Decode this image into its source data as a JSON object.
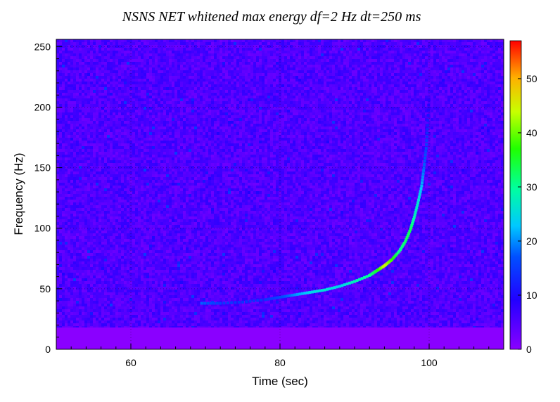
{
  "chart_data": {
    "type": "heatmap",
    "title": "NSNS NET whitened max energy df=2 Hz dt=250 ms",
    "xlabel": "Time (sec)",
    "ylabel": "Frequency (Hz)",
    "xlim": [
      50,
      110
    ],
    "ylim": [
      0,
      256
    ],
    "x_ticks": [
      60,
      80,
      100
    ],
    "y_ticks": [
      0,
      50,
      100,
      150,
      200,
      250
    ],
    "colorbar": {
      "range": [
        0,
        57
      ],
      "ticks": [
        0,
        10,
        20,
        30,
        40,
        50
      ],
      "colormap": "rainbow (violet to red)"
    },
    "background_energy": "approximately 3-8 (noise)",
    "grid": true,
    "low_frequency_band": {
      "frequency_max": 18,
      "energy": 0
    },
    "chirp_track": {
      "x": [
        69.5,
        72,
        75,
        78,
        80,
        82,
        84,
        86,
        88,
        90,
        92,
        93,
        94,
        95,
        96,
        96.8,
        97.5,
        98,
        98.5,
        99,
        99.3,
        99.6,
        99.8,
        100
      ],
      "y": [
        38,
        38,
        39,
        41,
        43,
        45,
        47,
        49,
        52,
        56,
        61,
        65,
        69,
        74,
        81,
        89,
        99,
        109,
        121,
        135,
        150,
        166,
        185,
        210
      ],
      "energy": [
        18,
        15,
        14,
        14,
        16,
        20,
        24,
        26,
        24,
        28,
        30,
        35,
        45,
        38,
        30,
        32,
        33,
        28,
        26,
        22,
        18,
        16,
        12,
        8
      ]
    }
  }
}
